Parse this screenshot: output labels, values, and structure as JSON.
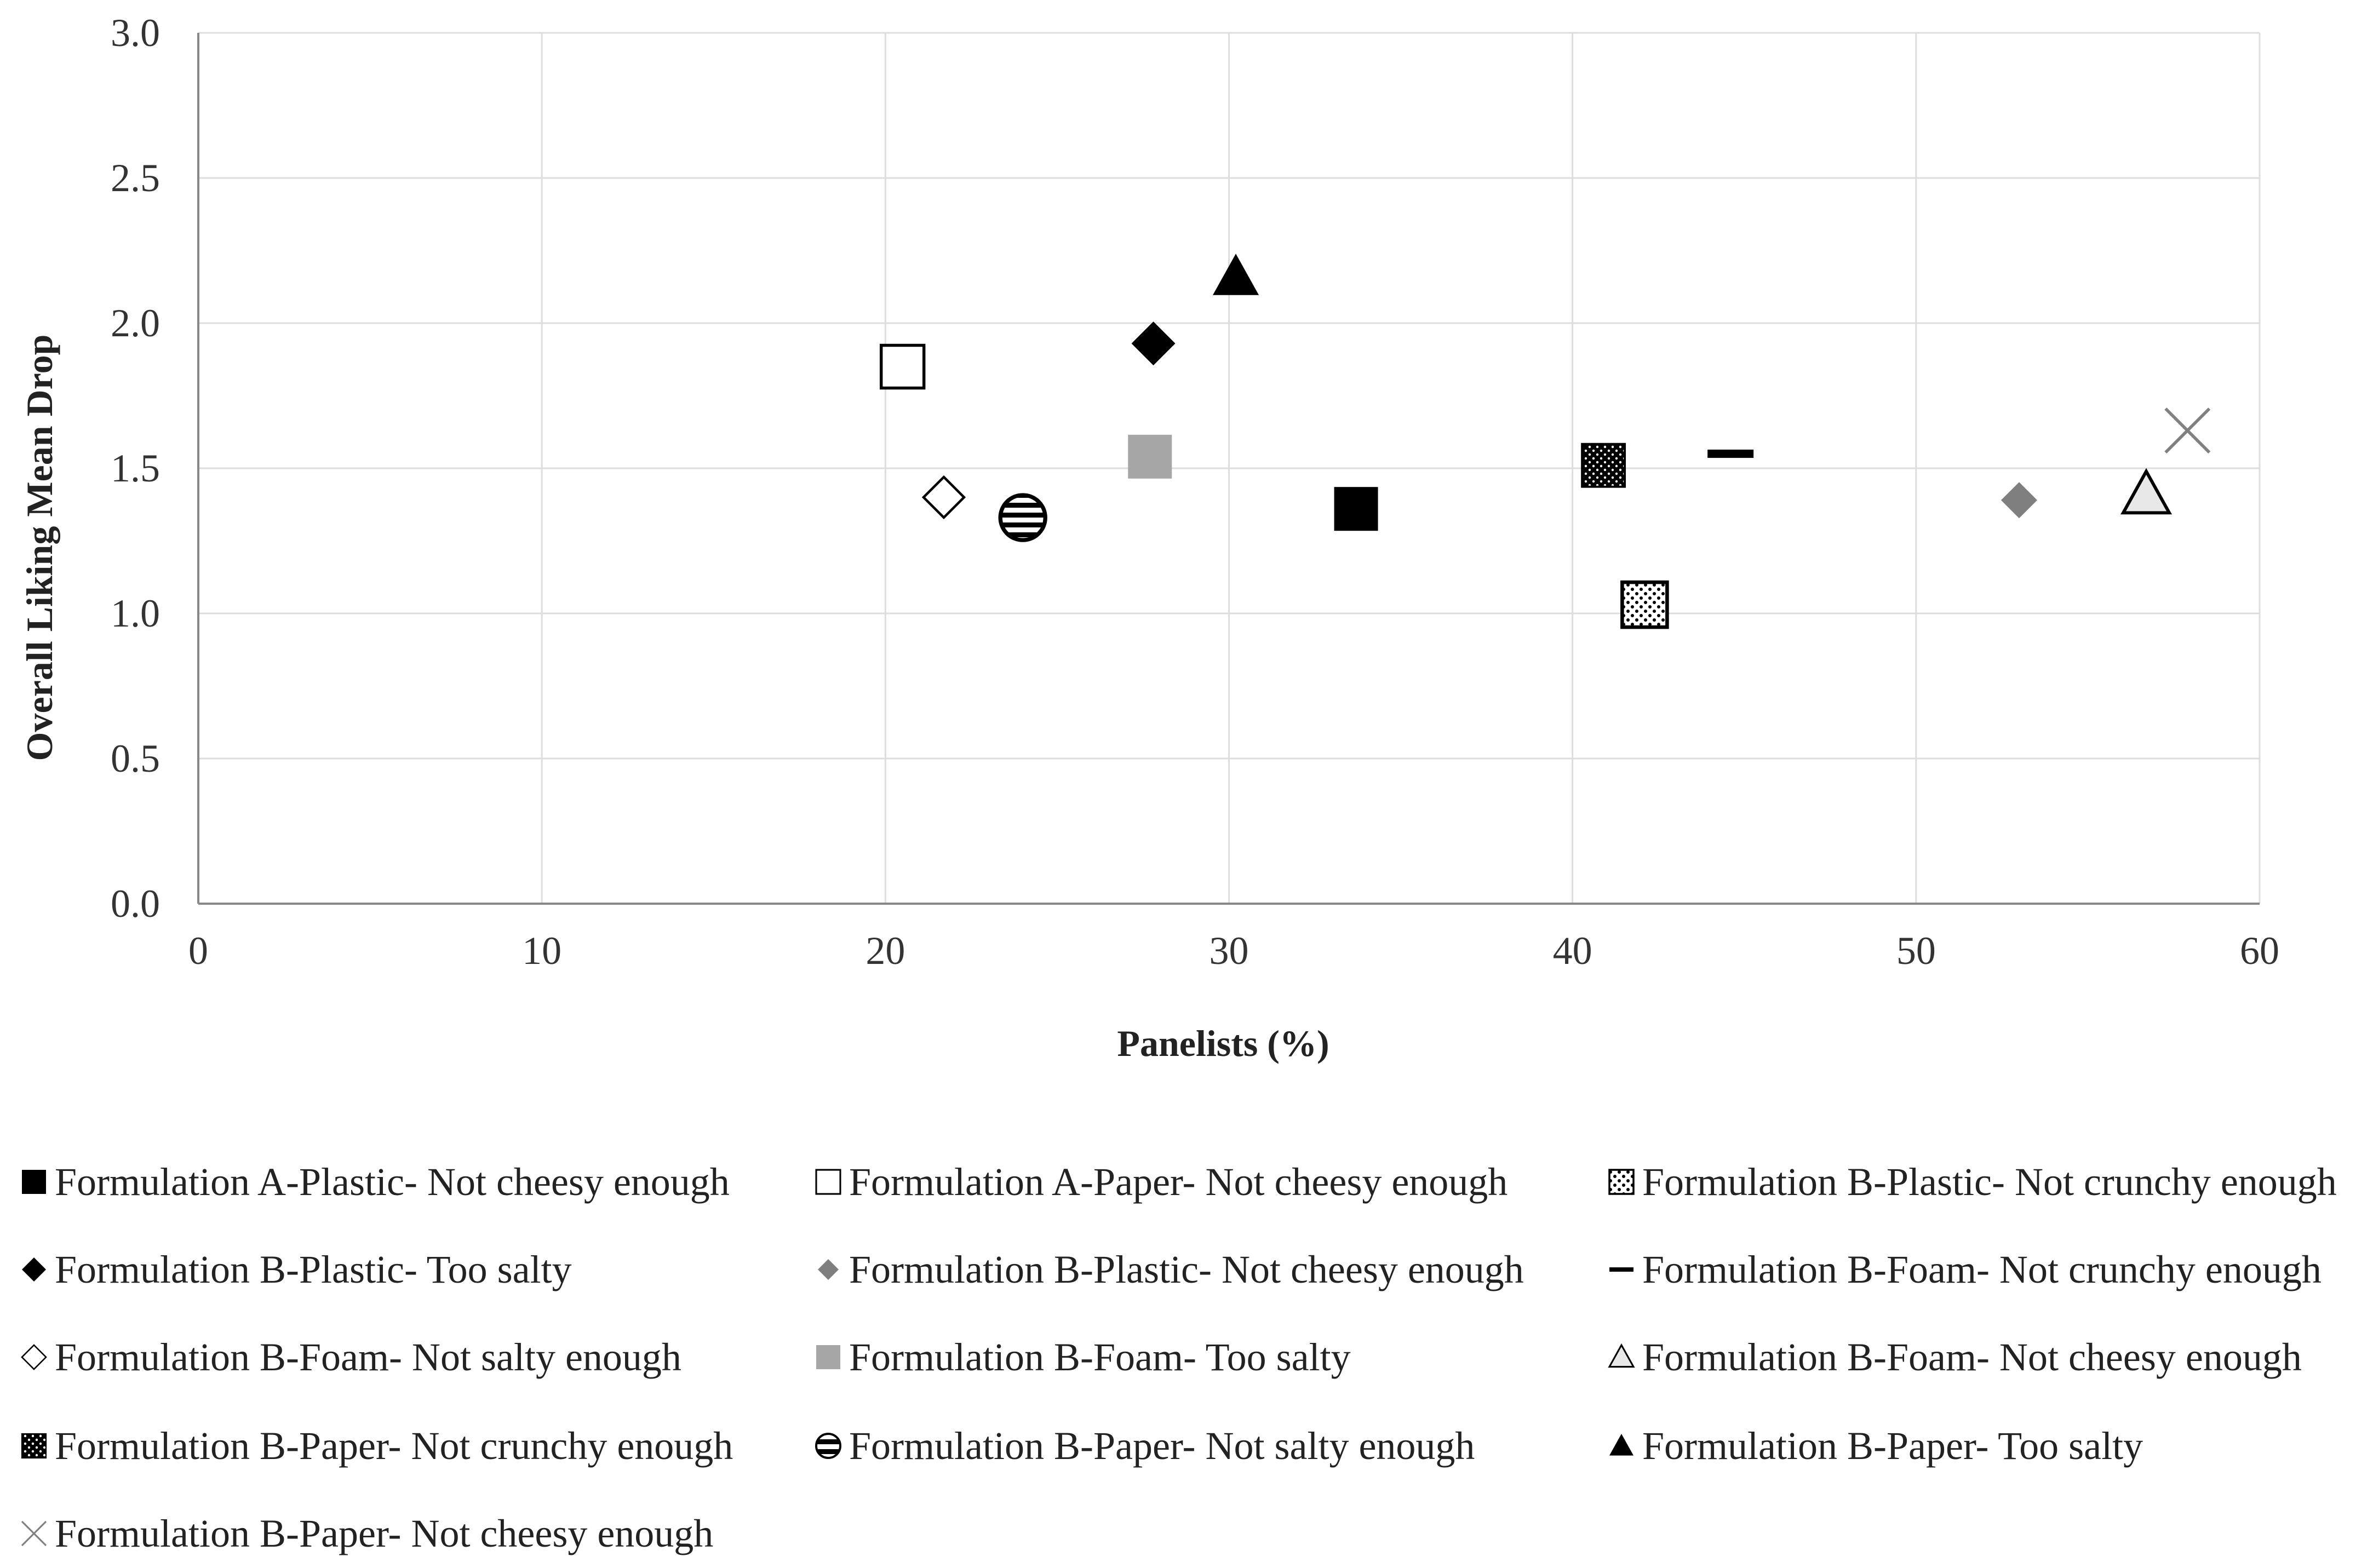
{
  "chart_data": {
    "type": "scatter",
    "title": "",
    "xlabel": "Panelists (%)",
    "ylabel": "Overall Liking Mean Drop",
    "xlim": [
      0,
      60
    ],
    "ylim": [
      0,
      3
    ],
    "x_ticks": [
      "0",
      "10",
      "20",
      "30",
      "40",
      "50",
      "60"
    ],
    "y_ticks": [
      "0.0",
      "0.5",
      "1.0",
      "1.5",
      "2.0",
      "2.5",
      "3.0"
    ],
    "grid": true,
    "legend_position": "bottom",
    "series": [
      {
        "name": "Formulation A-Plastic- Not cheesy enough",
        "marker": "square-filled",
        "color": "#000000",
        "x": 33.7,
        "y": 1.36
      },
      {
        "name": "Formulation A-Paper- Not cheesy enough",
        "marker": "square-open",
        "color": "#000000",
        "x": 20.5,
        "y": 1.85
      },
      {
        "name": "Formulation B-Plastic- Not crunchy enough",
        "marker": "square-dotted",
        "color": "#000000",
        "x": 42.1,
        "y": 1.03
      },
      {
        "name": "Formulation B-Plastic- Too salty",
        "marker": "diamond-filled",
        "color": "#000000",
        "x": 27.8,
        "y": 1.93
      },
      {
        "name": "Formulation B-Plastic- Not cheesy enough",
        "marker": "diamond-filled",
        "color": "#7f7f7f",
        "x": 53.0,
        "y": 1.39
      },
      {
        "name": "Formulation B-Foam- Not crunchy enough",
        "marker": "dash",
        "color": "#000000",
        "x": 44.6,
        "y": 1.55
      },
      {
        "name": "Formulation B-Foam- Not salty enough",
        "marker": "diamond-open",
        "color": "#000000",
        "x": 21.7,
        "y": 1.4
      },
      {
        "name": "Formulation B-Foam- Too salty",
        "marker": "square-filled",
        "color": "#a6a6a6",
        "x": 27.7,
        "y": 1.54
      },
      {
        "name": "Formulation B-Foam- Not cheesy enough",
        "marker": "triangle-open",
        "color": "#000000",
        "x": 56.7,
        "y": 1.41
      },
      {
        "name": "Formulation B-Paper- Not crunchy enough",
        "marker": "square-dotted-dark",
        "color": "#000000",
        "x": 40.9,
        "y": 1.51
      },
      {
        "name": "Formulation B-Paper- Not salty enough",
        "marker": "circle-striped",
        "color": "#000000",
        "x": 24.0,
        "y": 1.33
      },
      {
        "name": "Formulation B-Paper- Too salty",
        "marker": "triangle-filled",
        "color": "#000000",
        "x": 30.2,
        "y": 2.16
      },
      {
        "name": "Formulation B-Paper- Not cheesy enough",
        "marker": "x",
        "color": "#808080",
        "x": 57.9,
        "y": 1.63
      }
    ]
  }
}
